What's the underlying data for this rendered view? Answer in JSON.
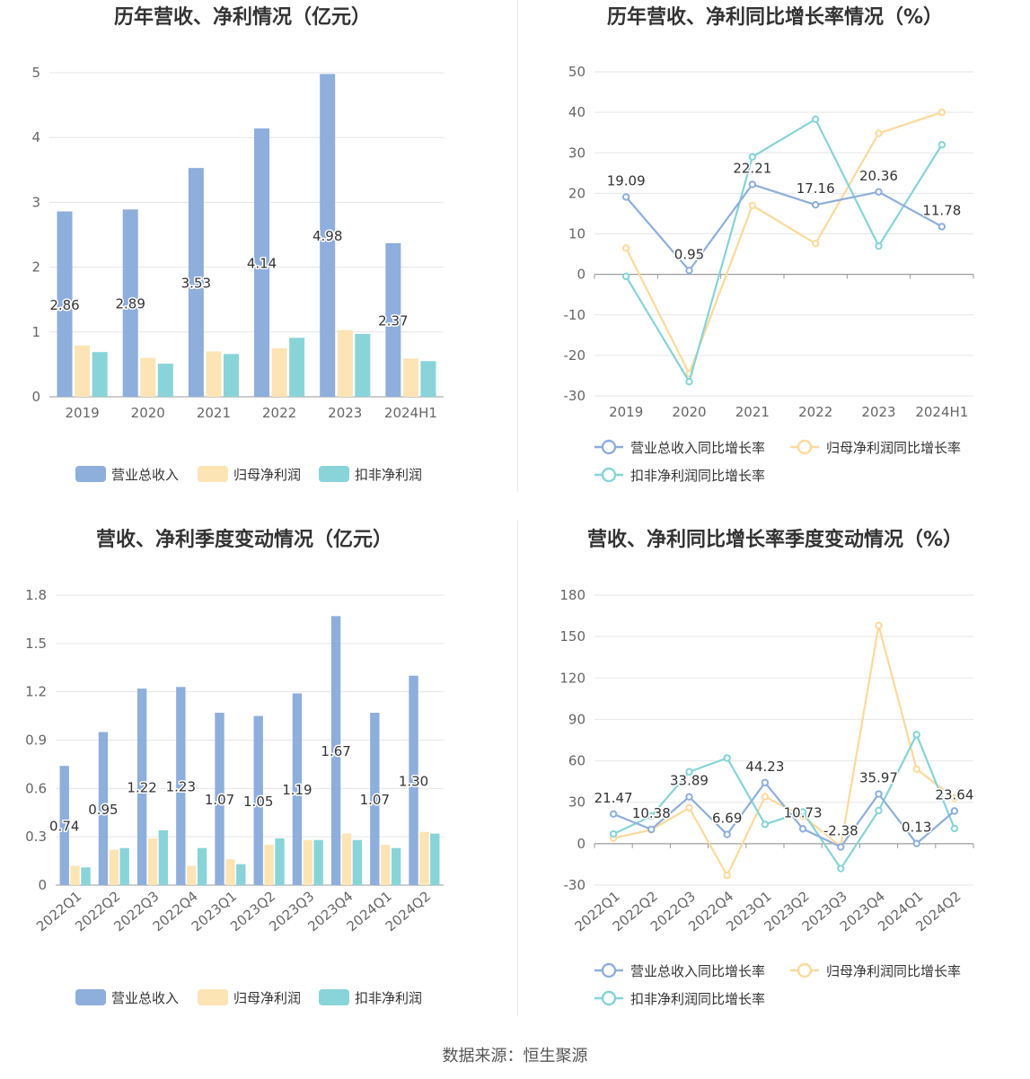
{
  "source": "数据来源：恒生聚源",
  "colors": {
    "revenue_bar": "#8eaedc",
    "profit_bar": "#fde4b4",
    "deducted_bar": "#88d4d9",
    "revenue_line": "#8eaedc",
    "profit_line": "#fcd99b",
    "deducted_line": "#86d3d6",
    "grid": "#e6e6e6",
    "axis": "#999999"
  },
  "chart_data": [
    {
      "id": "annual-amount",
      "type": "bar",
      "title": "历年营收、净利情况（亿元）",
      "categories": [
        "2019",
        "2020",
        "2021",
        "2022",
        "2023",
        "2024H1"
      ],
      "ylim": [
        0,
        5
      ],
      "yticks": [
        0,
        1,
        2,
        3,
        4,
        5
      ],
      "grid": true,
      "legend_position": "bottom",
      "series": [
        {
          "name": "营业总收入",
          "values": [
            2.86,
            2.89,
            3.53,
            4.14,
            4.98,
            2.37
          ],
          "labels": [
            "2.86",
            "2.89",
            "3.53",
            "4.14",
            "4.98",
            "2.37"
          ]
        },
        {
          "name": "归母净利润",
          "values": [
            0.79,
            0.6,
            0.7,
            0.75,
            1.03,
            0.59
          ]
        },
        {
          "name": "扣非净利润",
          "values": [
            0.69,
            0.51,
            0.66,
            0.91,
            0.97,
            0.55
          ]
        }
      ]
    },
    {
      "id": "annual-growth",
      "type": "line",
      "title": "历年营收、净利同比增长率情况（%）",
      "categories": [
        "2019",
        "2020",
        "2021",
        "2022",
        "2023",
        "2024H1"
      ],
      "ylim": [
        -30,
        50
      ],
      "yticks": [
        -30,
        -20,
        -10,
        0,
        10,
        20,
        30,
        40,
        50
      ],
      "grid": true,
      "legend_position": "bottom",
      "series": [
        {
          "name": "营业总收入同比增长率",
          "values": [
            19.09,
            0.95,
            22.21,
            17.16,
            20.36,
            11.78
          ],
          "labels": [
            "19.09",
            "0.95",
            "22.21",
            "17.16",
            "20.36",
            "11.78"
          ]
        },
        {
          "name": "归母净利润同比增长率",
          "values": [
            6.5,
            -24.5,
            17,
            7.6,
            34.8,
            40
          ]
        },
        {
          "name": "扣非净利润同比增长率",
          "values": [
            -0.5,
            -26.5,
            29,
            38.3,
            7,
            32
          ]
        }
      ]
    },
    {
      "id": "quarterly-amount",
      "type": "bar",
      "title": "营收、净利季度变动情况（亿元）",
      "categories": [
        "2022Q1",
        "2022Q2",
        "2022Q3",
        "2022Q4",
        "2023Q1",
        "2023Q2",
        "2023Q3",
        "2023Q4",
        "2024Q1",
        "2024Q2"
      ],
      "ylim": [
        0,
        1.8
      ],
      "yticks": [
        "0",
        "0.3",
        "0.6",
        "0.9",
        "1.2",
        "1.5",
        "1.8"
      ],
      "grid": true,
      "legend_position": "bottom",
      "series": [
        {
          "name": "营业总收入",
          "values": [
            0.74,
            0.95,
            1.22,
            1.23,
            1.07,
            1.05,
            1.19,
            1.67,
            1.07,
            1.3
          ],
          "labels": [
            "0.74",
            "0.95",
            "1.22",
            "1.23",
            "1.07",
            "1.05",
            "1.19",
            "1.67",
            "1.07",
            "1.30"
          ]
        },
        {
          "name": "归母净利润",
          "values": [
            0.12,
            0.22,
            0.29,
            0.12,
            0.16,
            0.25,
            0.28,
            0.32,
            0.25,
            0.33
          ]
        },
        {
          "name": "扣非净利润",
          "values": [
            0.11,
            0.23,
            0.34,
            0.23,
            0.13,
            0.29,
            0.28,
            0.28,
            0.23,
            0.32
          ]
        }
      ]
    },
    {
      "id": "quarterly-growth",
      "type": "line",
      "title": "营收、净利同比增长率季度变动情况（%）",
      "categories": [
        "2022Q1",
        "2022Q2",
        "2022Q3",
        "2022Q4",
        "2023Q1",
        "2023Q2",
        "2023Q3",
        "2023Q4",
        "2024Q1",
        "2024Q2"
      ],
      "ylim": [
        -30,
        180
      ],
      "yticks": [
        -30,
        0,
        30,
        60,
        90,
        120,
        150,
        180
      ],
      "grid": true,
      "legend_position": "bottom",
      "series": [
        {
          "name": "营业总收入同比增长率",
          "values": [
            21.47,
            10.38,
            33.89,
            6.69,
            44.23,
            10.73,
            -2.38,
            35.97,
            0.13,
            23.64
          ],
          "labels": [
            "21.47",
            "10.38",
            "33.89",
            "6.69",
            "44.23",
            "10.73",
            "-2.38",
            "35.97",
            "0.13",
            "23.64"
          ]
        },
        {
          "name": "归母净利润同比增长率",
          "values": [
            4,
            10,
            26,
            -23,
            34,
            20,
            -2,
            158,
            54,
            33
          ]
        },
        {
          "name": "扣非净利润同比增长率",
          "values": [
            7,
            20,
            52,
            62,
            14,
            23,
            -18,
            24,
            79,
            11
          ]
        }
      ]
    }
  ]
}
